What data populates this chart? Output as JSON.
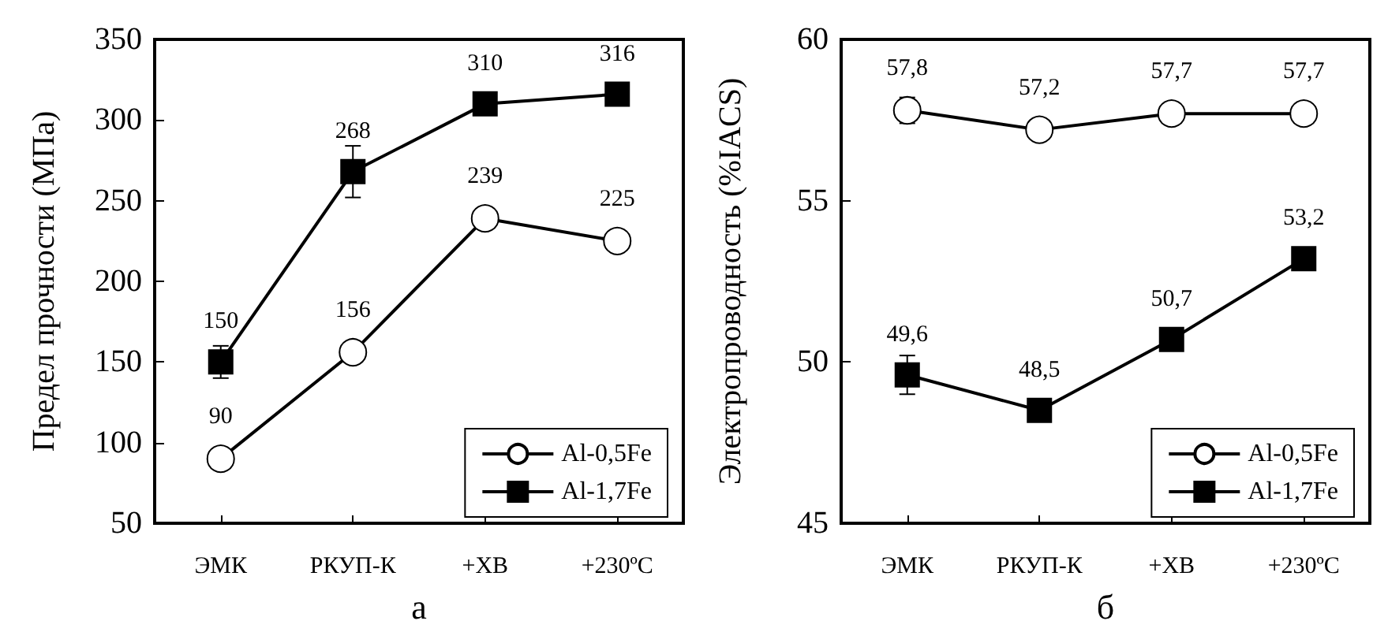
{
  "chart_data": [
    {
      "type": "line",
      "xlabel": "а",
      "ylabel": "Предел прочности (МПа)",
      "categories": [
        "ЭМК",
        "РКУП-К",
        "+ХВ",
        "+230ºС"
      ],
      "ylim": [
        50,
        350
      ],
      "yticks": [
        50,
        100,
        150,
        200,
        250,
        300,
        350
      ],
      "legend": "bottom right",
      "grid": false,
      "series": [
        {
          "name": "Al-0,5Fe",
          "color": "#000000",
          "marker": "circle",
          "values": [
            90,
            156,
            239,
            225
          ],
          "value_labels": [
            "90",
            "156",
            "239",
            "225"
          ]
        },
        {
          "name": "Al-1,7Fe",
          "color": "#000000",
          "marker": "square",
          "values": [
            150,
            268,
            310,
            316
          ],
          "value_labels": [
            "150",
            "268",
            "310",
            "316"
          ],
          "errors": [
            10,
            16,
            null,
            null
          ]
        }
      ]
    },
    {
      "type": "line",
      "xlabel": "б",
      "ylabel": "Электропроводность (%IACS)",
      "categories": [
        "ЭМК",
        "РКУП-К",
        "+ХВ",
        "+230ºС"
      ],
      "ylim": [
        45,
        60
      ],
      "yticks": [
        45,
        50,
        55,
        60
      ],
      "legend": "bottom right",
      "grid": false,
      "series": [
        {
          "name": "Al-0,5Fe",
          "color": "#000000",
          "marker": "circle",
          "values": [
            57.8,
            57.2,
            57.7,
            57.7
          ],
          "value_labels": [
            "57,8",
            "57,2",
            "57,7",
            "57,7"
          ],
          "errors": [
            0.4,
            null,
            null,
            null
          ]
        },
        {
          "name": "Al-1,7Fe",
          "color": "#000000",
          "marker": "square",
          "values": [
            49.6,
            48.5,
            50.7,
            53.2
          ],
          "value_labels": [
            "49,6",
            "48,5",
            "50,7",
            "53,2"
          ],
          "errors": [
            0.6,
            null,
            null,
            null
          ]
        }
      ]
    }
  ]
}
